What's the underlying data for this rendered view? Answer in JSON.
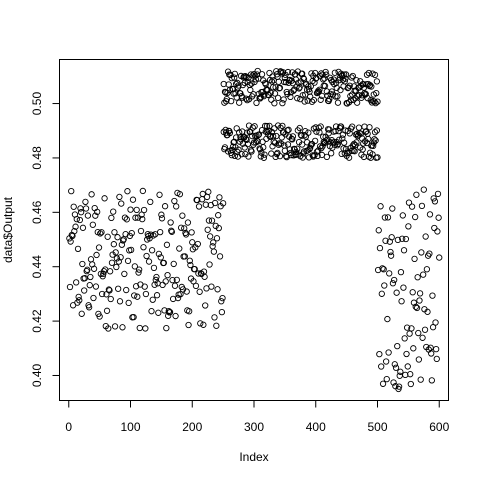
{
  "chart_data": {
    "type": "scatter",
    "xlabel": "Index",
    "ylabel": "data$Output",
    "xlim": [
      -15,
      615
    ],
    "ylim": [
      0.3908,
      0.5162
    ],
    "xticks": [
      0,
      100,
      200,
      300,
      400,
      500,
      600
    ],
    "yticks": [
      0.4,
      0.42,
      0.44,
      0.46,
      0.48,
      0.5
    ],
    "ytick_labels": [
      "0.40",
      "0.42",
      "0.44",
      "0.46",
      "0.48",
      "0.50"
    ],
    "grid": false,
    "marker": "open-circle",
    "series": [
      {
        "segments": [
          {
            "x_start": 1,
            "x_end": 250,
            "y_min": 0.417,
            "y_max": 0.468,
            "n": 250
          },
          {
            "x_start": 251,
            "x_end": 500,
            "y_min": 0.48,
            "y_max": 0.492,
            "n": 250,
            "note": "lower band"
          },
          {
            "x_start": 251,
            "x_end": 500,
            "y_min": 0.5,
            "y_max": 0.512,
            "n": 250,
            "note": "upper band"
          },
          {
            "x_start": 501,
            "x_end": 600,
            "y_min": 0.395,
            "y_max": 0.47,
            "n": 100
          }
        ]
      }
    ]
  }
}
